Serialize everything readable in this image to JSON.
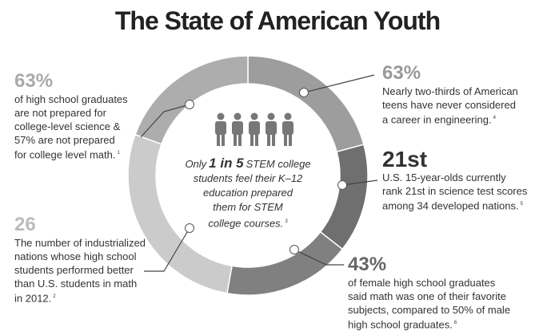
{
  "title": "The State of American Youth",
  "center": {
    "line1": [
      "Only",
      "1 in 5",
      "STEM college"
    ],
    "lines": [
      "students feel their K–12",
      "education prepared",
      "them for STEM",
      "college courses."
    ],
    "note": "3"
  },
  "callouts": [
    {
      "stat": "63%",
      "lines": [
        "of high school graduates",
        "are not prepared for",
        "college-level science &",
        "57% are not prepared",
        "for college level math."
      ],
      "note": "1"
    },
    {
      "stat": "26",
      "lines": [
        "The number of industrialized",
        "nations whose high school",
        "students performed better",
        "than U.S. students in math",
        "in 2012."
      ],
      "note": "2"
    },
    {
      "stat": "63%",
      "lines": [
        "Nearly two-thirds of American",
        "teens have never considered",
        "a career in engineering."
      ],
      "note": "4"
    },
    {
      "stat": "21st",
      "lines": [
        "U.S. 15-year-olds currently",
        "rank 21st in science test scores",
        "among 34 developed nations."
      ],
      "note": "5"
    },
    {
      "stat": "43%",
      "lines": [
        "of female high school graduates",
        "said math was one of their favorite",
        "subjects, compared to 50% of male",
        "high school graduates."
      ],
      "note": "6"
    }
  ]
}
